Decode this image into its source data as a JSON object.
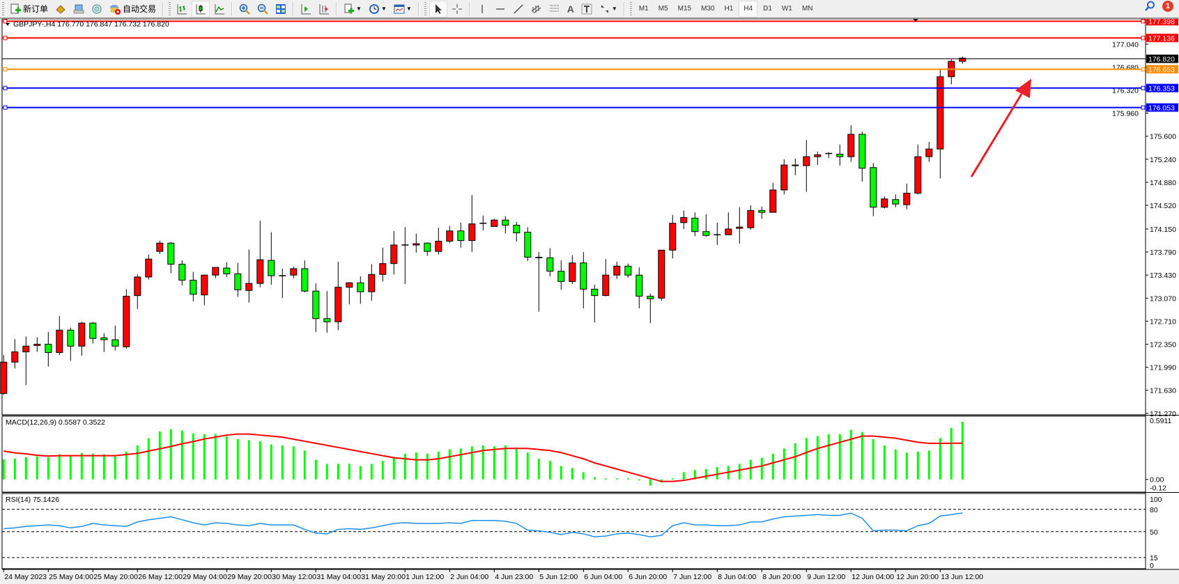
{
  "toolbar": {
    "new_order_label": "新订单",
    "auto_trading_label": "自动交易",
    "icons": [
      "new-order-icon",
      "market-watch-icon",
      "navigator-icon",
      "signals-icon",
      "auto-trading-icon",
      "bar-chart-icon",
      "candlestick-icon",
      "line-chart-icon",
      "zoom-in-icon",
      "zoom-out-icon",
      "tile-windows-icon",
      "chart-shift-icon",
      "autoscroll-icon",
      "indicators-icon",
      "periods-icon",
      "templates-icon",
      "cursor-icon",
      "crosshair-icon",
      "vertical-line-icon",
      "horizontal-line-icon",
      "trendline-icon",
      "equidistant-channel-icon",
      "fibonacci-icon",
      "text-icon",
      "text-label-icon",
      "arrows-icon"
    ],
    "periods": [
      "M1",
      "M5",
      "M15",
      "M30",
      "H1",
      "H4",
      "D1",
      "W1",
      "MN"
    ],
    "active_period": "H4",
    "notification_count": "1"
  },
  "chart": {
    "header": "GBPJPY-,H4  176.770 176.847 176.732 176.820",
    "macd_label": "MACD(12,26,9) 0.5587 0.3522",
    "rsi_label": "RSI(14) 75.1426",
    "up_color": "#ff0000",
    "down_color": "#00ff00"
  },
  "chart_data": [
    {
      "type": "candlestick",
      "symbol": "GBPJPY-",
      "timeframe": "H4",
      "ohlc": [
        [
          171.58,
          172.18,
          171.56,
          172.07
        ],
        [
          172.07,
          172.43,
          171.97,
          172.23
        ],
        [
          172.23,
          172.47,
          171.71,
          172.32
        ],
        [
          172.33,
          172.46,
          172.23,
          172.35
        ],
        [
          172.35,
          172.54,
          172.0,
          172.22
        ],
        [
          172.22,
          172.79,
          172.18,
          172.57
        ],
        [
          172.57,
          172.61,
          172.09,
          172.32
        ],
        [
          172.32,
          172.7,
          172.17,
          172.68
        ],
        [
          172.68,
          172.7,
          172.36,
          172.44
        ],
        [
          172.45,
          172.52,
          172.23,
          172.42
        ],
        [
          172.42,
          172.64,
          172.25,
          172.32
        ],
        [
          172.31,
          173.21,
          172.28,
          173.1
        ],
        [
          173.11,
          173.44,
          172.9,
          173.4
        ],
        [
          173.4,
          173.75,
          173.36,
          173.68
        ],
        [
          173.8,
          173.97,
          173.76,
          173.93
        ],
        [
          173.93,
          173.95,
          173.46,
          173.6
        ],
        [
          173.6,
          173.66,
          173.27,
          173.35
        ],
        [
          173.35,
          173.48,
          173.02,
          173.13
        ],
        [
          173.12,
          173.43,
          172.96,
          173.43
        ],
        [
          173.43,
          173.55,
          173.38,
          173.55
        ],
        [
          173.54,
          173.63,
          173.4,
          173.45
        ],
        [
          173.45,
          173.62,
          173.09,
          173.2
        ],
        [
          173.19,
          173.83,
          173.0,
          173.3
        ],
        [
          173.3,
          174.28,
          173.24,
          173.67
        ],
        [
          173.66,
          174.1,
          173.28,
          173.42
        ],
        [
          173.42,
          173.53,
          173.07,
          173.42
        ],
        [
          173.43,
          173.56,
          173.38,
          173.53
        ],
        [
          173.53,
          173.66,
          173.16,
          173.18
        ],
        [
          173.18,
          173.3,
          172.54,
          172.75
        ],
        [
          172.75,
          173.18,
          172.53,
          172.7
        ],
        [
          172.7,
          173.64,
          172.57,
          173.24
        ],
        [
          173.24,
          173.32,
          172.97,
          173.31
        ],
        [
          173.31,
          173.41,
          172.98,
          173.17
        ],
        [
          173.17,
          173.6,
          173.03,
          173.44
        ],
        [
          173.44,
          173.86,
          173.33,
          173.61
        ],
        [
          173.61,
          174.12,
          173.44,
          173.9
        ],
        [
          173.9,
          174.18,
          173.29,
          173.9
        ],
        [
          173.9,
          174.08,
          173.78,
          173.92
        ],
        [
          173.93,
          173.94,
          173.73,
          173.8
        ],
        [
          173.8,
          174.17,
          173.75,
          173.96
        ],
        [
          173.96,
          174.2,
          173.93,
          174.12
        ],
        [
          174.12,
          174.25,
          173.86,
          173.97
        ],
        [
          173.97,
          174.68,
          173.79,
          174.23
        ],
        [
          174.24,
          174.36,
          174.13,
          174.24
        ],
        [
          174.19,
          174.31,
          174.19,
          174.29
        ],
        [
          174.29,
          174.35,
          174.08,
          174.21
        ],
        [
          174.21,
          174.26,
          173.95,
          174.09
        ],
        [
          174.1,
          174.18,
          173.65,
          173.71
        ],
        [
          173.71,
          173.79,
          172.86,
          173.7
        ],
        [
          173.7,
          173.85,
          173.41,
          173.49
        ],
        [
          173.49,
          173.66,
          173.2,
          173.33
        ],
        [
          173.33,
          173.74,
          173.29,
          173.62
        ],
        [
          173.62,
          173.79,
          172.91,
          173.21
        ],
        [
          173.21,
          173.28,
          172.69,
          173.11
        ],
        [
          173.11,
          173.68,
          173.1,
          173.43
        ],
        [
          173.43,
          173.64,
          173.37,
          173.57
        ],
        [
          173.57,
          173.61,
          173.39,
          173.43
        ],
        [
          173.43,
          173.55,
          172.91,
          173.1
        ],
        [
          173.1,
          173.14,
          172.68,
          173.06
        ],
        [
          173.07,
          173.82,
          173.03,
          173.82
        ],
        [
          173.82,
          174.37,
          173.69,
          174.24
        ],
        [
          174.25,
          174.44,
          174.15,
          174.33
        ],
        [
          174.32,
          174.41,
          174.04,
          174.11
        ],
        [
          174.11,
          174.38,
          174.03,
          174.05
        ],
        [
          174.06,
          174.25,
          173.9,
          174.06
        ],
        [
          174.06,
          174.41,
          174.06,
          174.15
        ],
        [
          174.16,
          174.49,
          173.92,
          174.18
        ],
        [
          174.17,
          174.52,
          174.14,
          174.44
        ],
        [
          174.44,
          174.5,
          174.31,
          174.41
        ],
        [
          174.41,
          174.87,
          174.41,
          174.76
        ],
        [
          174.76,
          175.24,
          174.69,
          175.15
        ],
        [
          175.15,
          175.25,
          174.99,
          175.14
        ],
        [
          175.14,
          175.54,
          174.73,
          175.28
        ],
        [
          175.28,
          175.36,
          175.15,
          175.31
        ],
        [
          175.33,
          175.35,
          175.26,
          175.33
        ],
        [
          175.32,
          175.47,
          175.14,
          175.28
        ],
        [
          175.28,
          175.77,
          175.2,
          175.63
        ],
        [
          175.63,
          175.67,
          174.89,
          175.1
        ],
        [
          175.11,
          175.18,
          174.35,
          174.49
        ],
        [
          174.49,
          174.66,
          174.47,
          174.62
        ],
        [
          174.61,
          174.69,
          174.49,
          174.54
        ],
        [
          174.53,
          174.86,
          174.46,
          174.71
        ],
        [
          174.71,
          175.47,
          174.69,
          175.28
        ],
        [
          175.28,
          175.51,
          175.2,
          175.4
        ],
        [
          175.4,
          176.64,
          174.94,
          176.53
        ],
        [
          176.53,
          176.8,
          176.41,
          176.77
        ],
        [
          176.77,
          176.847,
          176.732,
          176.82
        ]
      ],
      "x_tick_labels": [
        "24 May 2023",
        "25 May 04:00",
        "25 May 20:00",
        "26 May 12:00",
        "29 May 04:00",
        "29 May 20:00",
        "30 May 12:00",
        "31 May 04:00",
        "31 May 20:00",
        "1 Jun 12:00",
        "2 Jun 04:00",
        "4 Jun 23:00",
        "5 Jun 12:00",
        "6 Jun 04:00",
        "6 Jun 20:00",
        "7 Jun 12:00",
        "8 Jun 04:00",
        "8 Jun 20:00",
        "9 Jun 12:00",
        "12 Jun 04:00",
        "12 Jun 20:00",
        "13 Jun 12:00"
      ],
      "y_tick_labels": [
        "177.040",
        "176.680",
        "176.320",
        "175.960",
        "175.600",
        "175.240",
        "174.880",
        "174.520",
        "174.150",
        "173.790",
        "173.430",
        "173.070",
        "172.710",
        "172.350",
        "171.990",
        "171.630",
        "171.270"
      ],
      "ylim": [
        171.27,
        177.4
      ],
      "grid": false,
      "horizontal_lines": [
        {
          "price": "177.398",
          "color": "#ff0000"
        },
        {
          "price": "177.136",
          "color": "#ff0000"
        },
        {
          "price": "176.820",
          "color": "#000000"
        },
        {
          "price": "176.653",
          "color": "#ff8c00"
        },
        {
          "price": "176.353",
          "color": "#0000ff"
        },
        {
          "price": "176.053",
          "color": "#0000ff"
        }
      ],
      "annotation": {
        "type": "arrow",
        "direction": "up-right",
        "color": "#e8202a"
      }
    },
    {
      "type": "bar+line",
      "indicator": "MACD(12,26,9)",
      "histogram": [
        0.196,
        0.203,
        0.216,
        0.223,
        0.216,
        0.243,
        0.236,
        0.257,
        0.25,
        0.243,
        0.223,
        0.27,
        0.331,
        0.399,
        0.466,
        0.486,
        0.473,
        0.446,
        0.439,
        0.44,
        0.42,
        0.39,
        0.38,
        0.37,
        0.34,
        0.33,
        0.32,
        0.28,
        0.19,
        0.15,
        0.15,
        0.15,
        0.13,
        0.15,
        0.18,
        0.22,
        0.25,
        0.26,
        0.25,
        0.27,
        0.29,
        0.3,
        0.32,
        0.33,
        0.32,
        0.33,
        0.31,
        0.26,
        0.2,
        0.18,
        0.13,
        0.11,
        0.07,
        0.02,
        0.01,
        0.01,
        0.01,
        -0.01,
        -0.06,
        -0.03,
        0.01,
        0.07,
        0.09,
        0.1,
        0.12,
        0.13,
        0.15,
        0.19,
        0.21,
        0.25,
        0.3,
        0.35,
        0.4,
        0.42,
        0.44,
        0.44,
        0.48,
        0.46,
        0.39,
        0.33,
        0.29,
        0.26,
        0.27,
        0.28,
        0.4,
        0.5,
        0.5587
      ],
      "signal": [
        0.275,
        0.257,
        0.248,
        0.234,
        0.227,
        0.23,
        0.23,
        0.23,
        0.23,
        0.23,
        0.23,
        0.241,
        0.252,
        0.275,
        0.297,
        0.32,
        0.345,
        0.367,
        0.392,
        0.41,
        0.43,
        0.44,
        0.44,
        0.43,
        0.42,
        0.41,
        0.39,
        0.37,
        0.35,
        0.33,
        0.31,
        0.29,
        0.27,
        0.25,
        0.23,
        0.21,
        0.2,
        0.19,
        0.19,
        0.2,
        0.22,
        0.24,
        0.26,
        0.28,
        0.29,
        0.3,
        0.3,
        0.3,
        0.29,
        0.28,
        0.26,
        0.23,
        0.2,
        0.16,
        0.13,
        0.1,
        0.07,
        0.04,
        0.01,
        -0.02,
        -0.02,
        -0.01,
        0.01,
        0.03,
        0.05,
        0.07,
        0.09,
        0.11,
        0.13,
        0.16,
        0.19,
        0.22,
        0.26,
        0.3,
        0.33,
        0.36,
        0.39,
        0.42,
        0.42,
        0.41,
        0.4,
        0.38,
        0.36,
        0.35,
        0.35,
        0.35,
        0.3522
      ],
      "y_tick_labels": [
        "0.5911",
        "0.00",
        "-0.12"
      ],
      "ylim": [
        -0.12,
        0.5911
      ],
      "histogram_color": "#00ff00",
      "signal_color": "#ff0000"
    },
    {
      "type": "line",
      "indicator": "RSI(14)",
      "values": [
        54,
        55,
        57,
        58,
        59,
        58,
        55,
        57,
        61,
        59,
        58,
        57,
        63,
        66,
        68,
        70,
        66,
        62,
        59,
        62,
        61,
        59,
        58,
        61,
        59,
        59,
        59,
        53,
        48,
        47,
        53,
        54,
        53,
        55,
        58,
        61,
        62,
        61,
        61,
        61,
        62,
        61,
        65,
        65,
        65,
        64,
        61,
        52,
        51,
        49,
        46,
        49,
        47,
        43,
        44,
        47,
        48,
        46,
        43,
        45,
        58,
        62,
        59,
        59,
        58,
        58,
        59,
        63,
        63,
        67,
        70,
        71,
        72,
        73,
        72,
        72,
        75,
        68,
        51,
        52,
        52,
        51,
        58,
        61,
        71,
        73,
        75.1426
      ],
      "levels": [
        80,
        50,
        15
      ],
      "y_tick_labels": [
        "100",
        "80",
        "50",
        "15",
        "0"
      ],
      "ylim": [
        0,
        100
      ],
      "color": "#1e8fe8"
    }
  ]
}
